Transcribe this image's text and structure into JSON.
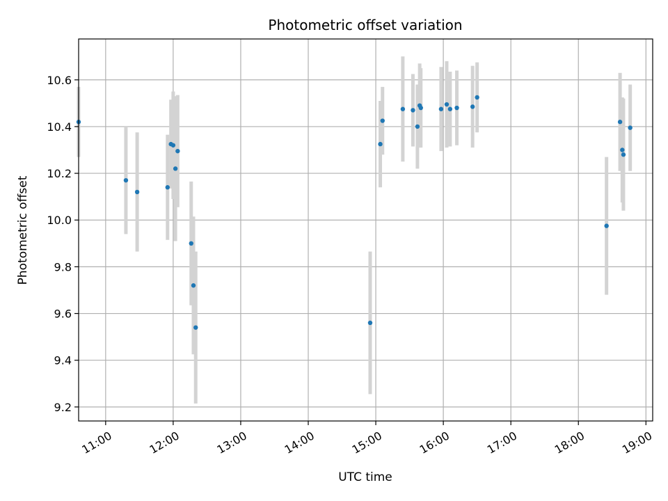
{
  "chart_data": {
    "type": "scatter",
    "title": "Photometric offset variation",
    "xlabel": "UTC time",
    "ylabel": "Photometric offset",
    "x_unit": "UTC time of day (HH:MM)",
    "xlim": [
      "10:36",
      "19:06"
    ],
    "ylim": [
      9.14,
      10.775
    ],
    "x_ticks": [
      "11:00",
      "12:00",
      "13:00",
      "14:00",
      "15:00",
      "16:00",
      "17:00",
      "18:00",
      "19:00"
    ],
    "y_ticks": [
      9.2,
      9.4,
      9.6,
      9.8,
      10.0,
      10.2,
      10.4,
      10.6
    ],
    "y_tick_labels": [
      "9.2",
      "9.4",
      "9.6",
      "9.8",
      "10.0",
      "10.2",
      "10.4",
      "10.6"
    ],
    "grid": true,
    "legend": "none",
    "colors": {
      "points": "#1f77b4",
      "error_bars": "#d3d3d3",
      "grid": "#b0b0b0"
    },
    "series": [
      {
        "points": [
          {
            "x": "10:36",
            "y": 10.42,
            "err": 0.15
          },
          {
            "x": "11:18",
            "y": 10.17,
            "err": 0.23
          },
          {
            "x": "11:28",
            "y": 10.12,
            "err": 0.255
          },
          {
            "x": "11:55",
            "y": 10.14,
            "err": 0.225
          },
          {
            "x": "11:58",
            "y": 10.325,
            "err": 0.19
          },
          {
            "x": "12:00",
            "y": 10.32,
            "err": 0.23
          },
          {
            "x": "12:02",
            "y": 10.22,
            "err": 0.31
          },
          {
            "x": "12:04",
            "y": 10.295,
            "err": 0.24
          },
          {
            "x": "12:16",
            "y": 9.9,
            "err": 0.265
          },
          {
            "x": "12:18",
            "y": 9.72,
            "err": 0.295
          },
          {
            "x": "12:20",
            "y": 9.54,
            "err": 0.325
          },
          {
            "x": "14:55",
            "y": 9.56,
            "err": 0.305
          },
          {
            "x": "15:04",
            "y": 10.325,
            "err": 0.185
          },
          {
            "x": "15:06",
            "y": 10.425,
            "err": 0.145
          },
          {
            "x": "15:24",
            "y": 10.475,
            "err": 0.225
          },
          {
            "x": "15:33",
            "y": 10.47,
            "err": 0.155
          },
          {
            "x": "15:37",
            "y": 10.4,
            "err": 0.18
          },
          {
            "x": "15:39",
            "y": 10.49,
            "err": 0.18
          },
          {
            "x": "15:40",
            "y": 10.48,
            "err": 0.17
          },
          {
            "x": "15:58",
            "y": 10.475,
            "err": 0.18
          },
          {
            "x": "16:03",
            "y": 10.495,
            "err": 0.185
          },
          {
            "x": "16:06",
            "y": 10.475,
            "err": 0.16
          },
          {
            "x": "16:12",
            "y": 10.48,
            "err": 0.16
          },
          {
            "x": "16:26",
            "y": 10.485,
            "err": 0.175
          },
          {
            "x": "16:30",
            "y": 10.525,
            "err": 0.15
          },
          {
            "x": "18:25",
            "y": 9.975,
            "err": 0.295
          },
          {
            "x": "18:37",
            "y": 10.42,
            "err": 0.21
          },
          {
            "x": "18:39",
            "y": 10.3,
            "err": 0.225
          },
          {
            "x": "18:40",
            "y": 10.28,
            "err": 0.24
          },
          {
            "x": "18:46",
            "y": 10.395,
            "err": 0.185
          }
        ]
      }
    ]
  }
}
